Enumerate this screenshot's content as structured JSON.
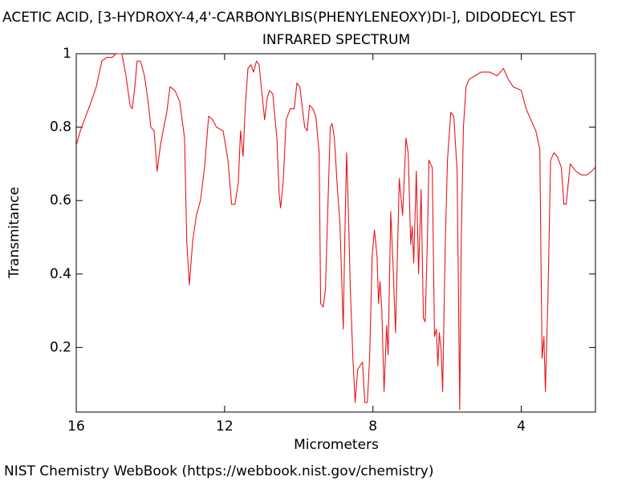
{
  "chart_data": {
    "type": "line",
    "title": "ACETIC ACID, [3-HYDROXY-4,4'-CARBONYLBIS(PHENYLENEOXY)DI-], DIDODECYL EST",
    "subtitle": "INFRARED SPECTRUM",
    "xlabel": "Micrometers",
    "ylabel": "Transmitance",
    "footer": "NIST Chemistry WebBook (https://webbook.nist.gov/chemistry)",
    "color": "#e8141a",
    "xlim": [
      16,
      2
    ],
    "xticks": [
      16,
      12,
      8,
      4
    ],
    "ylim": [
      0.024,
      1
    ],
    "yticks": [
      0.2,
      0.4,
      0.6,
      0.8,
      1
    ],
    "x": [
      16.0,
      15.89,
      15.78,
      15.63,
      15.46,
      15.31,
      15.18,
      15.03,
      14.92,
      14.77,
      14.66,
      14.55,
      14.49,
      14.42,
      14.36,
      14.27,
      14.16,
      14.05,
      13.99,
      13.9,
      13.82,
      13.73,
      13.64,
      13.56,
      13.47,
      13.34,
      13.21,
      13.08,
      13.02,
      12.95,
      12.86,
      12.76,
      12.65,
      12.54,
      12.43,
      12.32,
      12.22,
      12.04,
      11.91,
      11.81,
      11.72,
      11.63,
      11.57,
      11.5,
      11.44,
      11.37,
      11.29,
      11.22,
      11.14,
      11.07,
      11.01,
      10.92,
      10.85,
      10.79,
      10.7,
      10.59,
      10.53,
      10.49,
      10.42,
      10.34,
      10.23,
      10.12,
      10.05,
      9.97,
      9.9,
      9.84,
      9.77,
      9.71,
      9.62,
      9.54,
      9.45,
      9.41,
      9.34,
      9.28,
      9.21,
      9.15,
      9.1,
      9.04,
      8.95,
      8.89,
      8.8,
      8.76,
      8.71,
      8.67,
      8.61,
      8.54,
      8.48,
      8.41,
      8.35,
      8.28,
      8.22,
      8.15,
      8.09,
      8.02,
      7.96,
      7.89,
      7.85,
      7.81,
      7.76,
      7.7,
      7.63,
      7.59,
      7.52,
      7.46,
      7.39,
      7.35,
      7.29,
      7.2,
      7.11,
      7.05,
      6.98,
      6.94,
      6.9,
      6.83,
      6.77,
      6.7,
      6.64,
      6.59,
      6.53,
      6.49,
      6.4,
      6.34,
      6.29,
      6.25,
      6.21,
      6.16,
      6.12,
      6.05,
      5.99,
      5.9,
      5.82,
      5.73,
      5.66,
      5.62,
      5.56,
      5.49,
      5.41,
      5.25,
      5.08,
      4.86,
      4.65,
      4.48,
      4.35,
      4.22,
      4.0,
      3.87,
      3.74,
      3.61,
      3.5,
      3.44,
      3.39,
      3.35,
      3.28,
      3.21,
      3.12,
      3.03,
      2.92,
      2.85,
      2.79,
      2.68,
      2.53,
      2.38,
      2.23,
      2.1,
      2.01
    ],
    "values": [
      0.75,
      0.79,
      0.82,
      0.86,
      0.91,
      0.98,
      0.99,
      0.99,
      1.0,
      1.0,
      0.94,
      0.86,
      0.85,
      0.91,
      0.98,
      0.98,
      0.94,
      0.86,
      0.8,
      0.79,
      0.68,
      0.75,
      0.8,
      0.84,
      0.91,
      0.9,
      0.87,
      0.77,
      0.49,
      0.37,
      0.49,
      0.56,
      0.6,
      0.69,
      0.83,
      0.82,
      0.8,
      0.79,
      0.71,
      0.59,
      0.59,
      0.65,
      0.79,
      0.72,
      0.86,
      0.96,
      0.97,
      0.95,
      0.98,
      0.97,
      0.91,
      0.82,
      0.88,
      0.9,
      0.89,
      0.77,
      0.62,
      0.58,
      0.65,
      0.82,
      0.85,
      0.85,
      0.92,
      0.91,
      0.85,
      0.8,
      0.79,
      0.86,
      0.85,
      0.83,
      0.73,
      0.32,
      0.31,
      0.36,
      0.6,
      0.8,
      0.81,
      0.77,
      0.62,
      0.54,
      0.25,
      0.49,
      0.73,
      0.6,
      0.36,
      0.17,
      0.05,
      0.14,
      0.15,
      0.16,
      0.05,
      0.05,
      0.17,
      0.45,
      0.52,
      0.45,
      0.32,
      0.38,
      0.3,
      0.08,
      0.26,
      0.18,
      0.57,
      0.43,
      0.24,
      0.41,
      0.66,
      0.56,
      0.77,
      0.73,
      0.48,
      0.53,
      0.43,
      0.68,
      0.4,
      0.63,
      0.28,
      0.27,
      0.5,
      0.71,
      0.69,
      0.23,
      0.25,
      0.15,
      0.24,
      0.19,
      0.08,
      0.48,
      0.71,
      0.84,
      0.83,
      0.68,
      0.03,
      0.49,
      0.8,
      0.91,
      0.93,
      0.94,
      0.95,
      0.95,
      0.94,
      0.96,
      0.93,
      0.91,
      0.9,
      0.85,
      0.82,
      0.79,
      0.74,
      0.17,
      0.23,
      0.08,
      0.34,
      0.71,
      0.73,
      0.72,
      0.69,
      0.59,
      0.59,
      0.7,
      0.68,
      0.67,
      0.67,
      0.68,
      0.69
    ]
  }
}
